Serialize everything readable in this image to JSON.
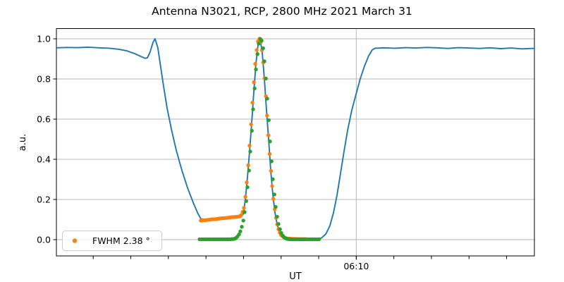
{
  "figure": {
    "title": "Antenna N3021, RCP, 2800 MHz 2021 March 31",
    "xlabel": "UT",
    "ylabel": "a.u.",
    "legend": {
      "label": "FWHM 2.38 °",
      "marker_color": "#ff7f0e"
    }
  },
  "chart_data": {
    "type": "line",
    "title": "Antenna N3021, RCP, 2800 MHz 2021 March 31",
    "xlabel": "UT",
    "ylabel": "a.u.",
    "x_units": "minutes relative to 06:10 UT",
    "x_range": [
      -15.96,
      9.48
    ],
    "y_range": [
      -0.081,
      1.051
    ],
    "y_ticks": [
      0.0,
      0.2,
      0.4,
      0.6,
      0.8,
      1.0
    ],
    "y_tick_labels": [
      "0.0",
      "0.2",
      "0.4",
      "0.6",
      "0.8",
      "1.0"
    ],
    "x_minor_ticks": [
      -16,
      -14,
      -12,
      -10,
      -8,
      -6,
      -4,
      -2,
      0,
      2,
      4,
      6,
      8
    ],
    "x_major_ticks": [
      {
        "t": 0,
        "label": "06:10"
      }
    ],
    "grid": true,
    "grid_color": "#b8b8b8",
    "legend": {
      "position": "lower left",
      "entries": [
        {
          "label": "FWHM 2.38 °",
          "color": "#ff7f0e",
          "marker": "dot"
        }
      ]
    },
    "series": [
      {
        "name": "drift-scan-curve",
        "type": "line",
        "color": "#1f77b4",
        "points": [
          [
            -15.96,
            0.955
          ],
          [
            -15.4,
            0.957
          ],
          [
            -14.83,
            0.956
          ],
          [
            -14.27,
            0.958
          ],
          [
            -13.71,
            0.955
          ],
          [
            -13.14,
            0.953
          ],
          [
            -12.66,
            0.948
          ],
          [
            -12.21,
            0.94
          ],
          [
            -11.76,
            0.925
          ],
          [
            -11.46,
            0.912
          ],
          [
            -11.23,
            0.903
          ],
          [
            -11.12,
            0.905
          ],
          [
            -10.97,
            0.935
          ],
          [
            -10.82,
            0.982
          ],
          [
            -10.71,
            1.0
          ],
          [
            -10.56,
            0.955
          ],
          [
            -10.41,
            0.86
          ],
          [
            -10.25,
            0.76
          ],
          [
            -10.07,
            0.655
          ],
          [
            -9.84,
            0.55
          ],
          [
            -9.58,
            0.445
          ],
          [
            -9.28,
            0.345
          ],
          [
            -8.98,
            0.258
          ],
          [
            -8.68,
            0.185
          ],
          [
            -8.45,
            0.135
          ],
          [
            -8.27,
            0.103
          ],
          [
            -7.89,
            0.101
          ],
          [
            -7.33,
            0.105
          ],
          [
            -6.77,
            0.11
          ],
          [
            -6.28,
            0.116
          ],
          [
            -6.13,
            0.118
          ],
          [
            -6.01,
            0.128
          ],
          [
            -5.9,
            0.203
          ],
          [
            -5.79,
            0.31
          ],
          [
            -5.68,
            0.44
          ],
          [
            -5.56,
            0.59
          ],
          [
            -5.45,
            0.74
          ],
          [
            -5.34,
            0.875
          ],
          [
            -5.26,
            0.946
          ],
          [
            -5.19,
            0.995
          ],
          [
            -5.15,
            1.0
          ],
          [
            -5.08,
            0.977
          ],
          [
            -5.0,
            0.925
          ],
          [
            -4.89,
            0.8
          ],
          [
            -4.78,
            0.645
          ],
          [
            -4.66,
            0.49
          ],
          [
            -4.55,
            0.34
          ],
          [
            -4.44,
            0.225
          ],
          [
            -4.33,
            0.135
          ],
          [
            -4.21,
            0.077
          ],
          [
            -4.1,
            0.041
          ],
          [
            -3.99,
            0.02
          ],
          [
            -3.88,
            0.009
          ],
          [
            -3.76,
            0.004
          ],
          [
            -3.61,
            0.001
          ],
          [
            -3.43,
            0.0
          ],
          [
            -3.13,
            0.0
          ],
          [
            -2.64,
            0.0
          ],
          [
            -2.15,
            0.002
          ],
          [
            -1.85,
            0.008
          ],
          [
            -1.62,
            0.028
          ],
          [
            -1.4,
            0.07
          ],
          [
            -1.21,
            0.135
          ],
          [
            -1.02,
            0.225
          ],
          [
            -0.84,
            0.33
          ],
          [
            -0.65,
            0.44
          ],
          [
            -0.46,
            0.545
          ],
          [
            -0.24,
            0.645
          ],
          [
            -0.01,
            0.725
          ],
          [
            0.21,
            0.8
          ],
          [
            0.44,
            0.865
          ],
          [
            0.66,
            0.915
          ],
          [
            0.85,
            0.945
          ],
          [
            1.0,
            0.953
          ],
          [
            1.49,
            0.955
          ],
          [
            2.05,
            0.953
          ],
          [
            2.62,
            0.956
          ],
          [
            3.18,
            0.954
          ],
          [
            3.74,
            0.957
          ],
          [
            4.3,
            0.955
          ],
          [
            4.87,
            0.952
          ],
          [
            5.43,
            0.956
          ],
          [
            5.99,
            0.954
          ],
          [
            6.56,
            0.952
          ],
          [
            7.12,
            0.955
          ],
          [
            7.68,
            0.951
          ],
          [
            8.25,
            0.954
          ],
          [
            8.81,
            0.95
          ],
          [
            9.37,
            0.952
          ],
          [
            9.48,
            0.952
          ]
        ]
      },
      {
        "name": "fwhm-scatter",
        "type": "scatter",
        "color": "#ff7f0e",
        "points": [
          [
            -8.27,
            0.095
          ],
          [
            -8.18,
            0.096
          ],
          [
            -8.1,
            0.097
          ],
          [
            -8.02,
            0.097
          ],
          [
            -7.94,
            0.098
          ],
          [
            -7.85,
            0.099
          ],
          [
            -7.77,
            0.1
          ],
          [
            -7.69,
            0.101
          ],
          [
            -7.61,
            0.102
          ],
          [
            -7.52,
            0.102
          ],
          [
            -7.44,
            0.103
          ],
          [
            -7.36,
            0.104
          ],
          [
            -7.28,
            0.105
          ],
          [
            -7.19,
            0.106
          ],
          [
            -7.11,
            0.107
          ],
          [
            -7.03,
            0.107
          ],
          [
            -6.95,
            0.108
          ],
          [
            -6.86,
            0.109
          ],
          [
            -6.78,
            0.11
          ],
          [
            -6.7,
            0.111
          ],
          [
            -6.62,
            0.112
          ],
          [
            -6.53,
            0.112
          ],
          [
            -6.45,
            0.113
          ],
          [
            -6.37,
            0.114
          ],
          [
            -6.29,
            0.115
          ],
          [
            -6.2,
            0.116
          ],
          [
            -6.13,
            0.122
          ],
          [
            -6.05,
            0.138
          ],
          [
            -5.98,
            0.158
          ],
          [
            -5.9,
            0.213
          ],
          [
            -5.83,
            0.285
          ],
          [
            -5.75,
            0.37
          ],
          [
            -5.68,
            0.468
          ],
          [
            -5.6,
            0.574
          ],
          [
            -5.53,
            0.682
          ],
          [
            -5.45,
            0.784
          ],
          [
            -5.38,
            0.875
          ],
          [
            -5.3,
            0.944
          ],
          [
            -5.23,
            0.987
          ],
          [
            -5.15,
            1.0
          ],
          [
            -5.08,
            0.984
          ],
          [
            -5.02,
            0.944
          ],
          [
            -4.95,
            0.882
          ],
          [
            -4.88,
            0.804
          ],
          [
            -4.81,
            0.714
          ],
          [
            -4.75,
            0.618
          ],
          [
            -4.68,
            0.52
          ],
          [
            -4.61,
            0.427
          ],
          [
            -4.54,
            0.342
          ],
          [
            -4.48,
            0.267
          ],
          [
            -4.41,
            0.203
          ],
          [
            -4.34,
            0.151
          ],
          [
            -4.27,
            0.109
          ],
          [
            -4.21,
            0.076
          ],
          [
            -4.14,
            0.052
          ],
          [
            -4.07,
            0.035
          ],
          [
            -4.0,
            0.023
          ],
          [
            -3.94,
            0.018
          ],
          [
            -3.87,
            0.013
          ],
          [
            -3.8,
            0.009
          ],
          [
            -3.73,
            0.007
          ],
          [
            -3.67,
            0.006
          ],
          [
            -3.6,
            0.005
          ],
          [
            -3.53,
            0.0045
          ],
          [
            -3.46,
            0.004
          ],
          [
            -3.4,
            0.0037
          ],
          [
            -3.33,
            0.0035
          ],
          [
            -3.26,
            0.0032
          ],
          [
            -3.19,
            0.003
          ],
          [
            -3.13,
            0.003
          ],
          [
            -3.06,
            0.0028
          ],
          [
            -2.99,
            0.0027
          ],
          [
            -2.92,
            0.0026
          ],
          [
            -2.86,
            0.0025
          ],
          [
            -2.79,
            0.0025
          ],
          [
            -2.72,
            0.0024
          ],
          [
            -2.65,
            0.0023
          ]
        ]
      },
      {
        "name": "fit-scatter",
        "type": "scatter",
        "color": "#2ca02c",
        "points": [
          [
            -8.34,
            0.002
          ],
          [
            -8.25,
            0.002
          ],
          [
            -8.17,
            0.002
          ],
          [
            -8.08,
            0.002
          ],
          [
            -8.0,
            0.002
          ],
          [
            -7.91,
            0.002
          ],
          [
            -7.82,
            0.002
          ],
          [
            -7.74,
            0.002
          ],
          [
            -7.65,
            0.002
          ],
          [
            -7.56,
            0.002
          ],
          [
            -7.48,
            0.002
          ],
          [
            -7.39,
            0.002
          ],
          [
            -7.31,
            0.002
          ],
          [
            -7.22,
            0.002
          ],
          [
            -7.13,
            0.002
          ],
          [
            -7.05,
            0.002
          ],
          [
            -6.96,
            0.002
          ],
          [
            -6.87,
            0.002
          ],
          [
            -6.79,
            0.002
          ],
          [
            -6.7,
            0.002
          ],
          [
            -6.62,
            0.003
          ],
          [
            -6.54,
            0.003
          ],
          [
            -6.47,
            0.005
          ],
          [
            -6.39,
            0.009
          ],
          [
            -6.32,
            0.016
          ],
          [
            -6.24,
            0.026
          ],
          [
            -6.17,
            0.041
          ],
          [
            -6.09,
            0.064
          ],
          [
            -6.01,
            0.095
          ],
          [
            -5.94,
            0.137
          ],
          [
            -5.86,
            0.192
          ],
          [
            -5.79,
            0.261
          ],
          [
            -5.71,
            0.344
          ],
          [
            -5.64,
            0.439
          ],
          [
            -5.56,
            0.542
          ],
          [
            -5.49,
            0.649
          ],
          [
            -5.41,
            0.753
          ],
          [
            -5.34,
            0.847
          ],
          [
            -5.26,
            0.924
          ],
          [
            -5.19,
            0.976
          ],
          [
            -5.11,
            0.999
          ],
          [
            -5.04,
            0.991
          ],
          [
            -4.96,
            0.953
          ],
          [
            -4.89,
            0.888
          ],
          [
            -4.81,
            0.802
          ],
          [
            -4.74,
            0.702
          ],
          [
            -4.66,
            0.595
          ],
          [
            -4.59,
            0.489
          ],
          [
            -4.51,
            0.39
          ],
          [
            -4.44,
            0.301
          ],
          [
            -4.36,
            0.225
          ],
          [
            -4.29,
            0.163
          ],
          [
            -4.21,
            0.114
          ],
          [
            -4.14,
            0.078
          ],
          [
            -4.06,
            0.052
          ],
          [
            -3.99,
            0.033
          ],
          [
            -3.91,
            0.02
          ],
          [
            -3.84,
            0.012
          ],
          [
            -3.76,
            0.007
          ],
          [
            -3.69,
            0.004
          ],
          [
            -3.61,
            0.003
          ],
          [
            -3.54,
            0.002
          ],
          [
            -3.45,
            0.002
          ],
          [
            -3.37,
            0.002
          ],
          [
            -3.28,
            0.002
          ],
          [
            -3.19,
            0.002
          ],
          [
            -3.11,
            0.002
          ],
          [
            -3.02,
            0.002
          ],
          [
            -2.93,
            0.002
          ],
          [
            -2.85,
            0.002
          ],
          [
            -2.76,
            0.002
          ],
          [
            -2.68,
            0.002
          ],
          [
            -2.59,
            0.002
          ],
          [
            -2.5,
            0.002
          ],
          [
            -2.42,
            0.002
          ],
          [
            -2.33,
            0.002
          ],
          [
            -2.24,
            0.002
          ],
          [
            -2.16,
            0.002
          ],
          [
            -2.07,
            0.002
          ],
          [
            -1.98,
            0.002
          ]
        ]
      }
    ]
  }
}
